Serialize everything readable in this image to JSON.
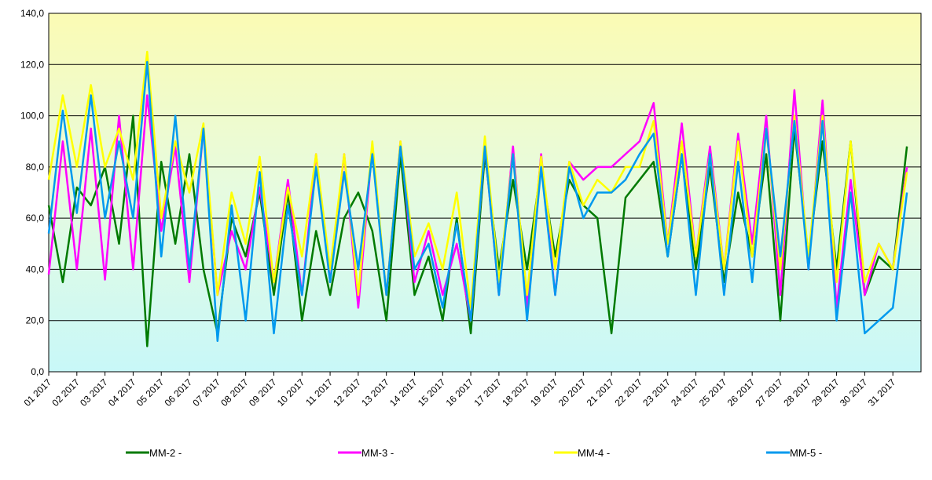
{
  "chart_data": {
    "type": "line",
    "x": [
      1,
      1.5,
      2,
      2.5,
      3,
      3.5,
      4,
      4.5,
      5,
      5.5,
      6,
      6.5,
      7,
      7.5,
      8,
      8.5,
      9,
      9.5,
      10,
      10.5,
      11,
      11.5,
      12,
      12.5,
      13,
      13.5,
      14,
      14.5,
      15,
      15.5,
      16,
      16.5,
      17,
      17.5,
      18,
      18.5,
      19,
      19.5,
      20,
      20.5,
      21,
      21.5,
      22,
      22.5,
      23,
      23.5,
      24,
      24.5,
      25,
      25.5,
      26,
      26.5,
      27,
      27.5,
      28,
      28.5,
      29,
      29.5,
      30,
      30.5,
      31,
      31.5
    ],
    "xlim": [
      1,
      32
    ],
    "xticks": [
      {
        "value": 1,
        "label": "01 2017"
      },
      {
        "value": 2,
        "label": "02 2017"
      },
      {
        "value": 3,
        "label": "03 2017"
      },
      {
        "value": 4,
        "label": "04 2017"
      },
      {
        "value": 5,
        "label": "05 2017"
      },
      {
        "value": 6,
        "label": "06 2017"
      },
      {
        "value": 7,
        "label": "07 2017"
      },
      {
        "value": 8,
        "label": "08 2017"
      },
      {
        "value": 9,
        "label": "09 2017"
      },
      {
        "value": 10,
        "label": "10 2017"
      },
      {
        "value": 11,
        "label": "11 2017"
      },
      {
        "value": 12,
        "label": "12 2017"
      },
      {
        "value": 13,
        "label": "13 2017"
      },
      {
        "value": 14,
        "label": "14 2017"
      },
      {
        "value": 15,
        "label": "15 2017"
      },
      {
        "value": 16,
        "label": "16 2017"
      },
      {
        "value": 17,
        "label": "17 2017"
      },
      {
        "value": 18,
        "label": "18 2017"
      },
      {
        "value": 19,
        "label": "19 2017"
      },
      {
        "value": 20,
        "label": "20 2017"
      },
      {
        "value": 21,
        "label": "21 2017"
      },
      {
        "value": 22,
        "label": "22 2017"
      },
      {
        "value": 23,
        "label": "23 2017"
      },
      {
        "value": 24,
        "label": "24 2017"
      },
      {
        "value": 25,
        "label": "25 2017"
      },
      {
        "value": 26,
        "label": "26 2017"
      },
      {
        "value": 27,
        "label": "27 2017"
      },
      {
        "value": 28,
        "label": "28 2017"
      },
      {
        "value": 29,
        "label": "29 2017"
      },
      {
        "value": 30,
        "label": "30 2017"
      },
      {
        "value": 31,
        "label": "31 2017"
      }
    ],
    "ylim": [
      0,
      140
    ],
    "yticks": [
      {
        "value": 0,
        "label": "0,0"
      },
      {
        "value": 20,
        "label": "20,0"
      },
      {
        "value": 40,
        "label": "40,0"
      },
      {
        "value": 60,
        "label": "60,0"
      },
      {
        "value": 80,
        "label": "80,0"
      },
      {
        "value": 100,
        "label": "100,0"
      },
      {
        "value": 120,
        "label": "120,0"
      },
      {
        "value": 140,
        "label": "140,0"
      }
    ],
    "grid": true,
    "series": [
      {
        "name": "MM-2 -",
        "color": "#007a00",
        "values": [
          65,
          35,
          72,
          65,
          80,
          50,
          100,
          10,
          82,
          50,
          85,
          40,
          15,
          60,
          45,
          70,
          30,
          70,
          20,
          55,
          30,
          60,
          70,
          55,
          20,
          85,
          30,
          45,
          20,
          60,
          15,
          85,
          40,
          75,
          40,
          80,
          45,
          75,
          65,
          60,
          15,
          68,
          75,
          82,
          45,
          85,
          40,
          80,
          35,
          70,
          45,
          85,
          20,
          95,
          45,
          90,
          40,
          90,
          30,
          45,
          40,
          88
        ]
      },
      {
        "name": "MM-3 -",
        "color": "#ff00ff",
        "values": [
          38,
          90,
          40,
          95,
          36,
          100,
          40,
          108,
          55,
          88,
          35,
          95,
          30,
          55,
          40,
          72,
          35,
          75,
          30,
          85,
          35,
          85,
          25,
          88,
          30,
          90,
          35,
          55,
          30,
          50,
          20,
          88,
          30,
          88,
          25,
          85,
          30,
          82,
          75,
          80,
          80,
          85,
          90,
          105,
          50,
          97,
          45,
          88,
          40,
          93,
          50,
          100,
          30,
          110,
          40,
          106,
          25,
          75,
          30,
          50,
          40,
          80
        ]
      },
      {
        "name": "MM-4 -",
        "color": "#ffff00",
        "values": [
          75,
          108,
          80,
          112,
          80,
          95,
          75,
          125,
          60,
          90,
          70,
          97,
          30,
          70,
          50,
          84,
          35,
          72,
          45,
          85,
          40,
          85,
          30,
          90,
          30,
          90,
          45,
          58,
          40,
          70,
          25,
          92,
          35,
          85,
          30,
          84,
          40,
          82,
          65,
          75,
          70,
          80,
          80,
          98,
          50,
          90,
          45,
          85,
          40,
          90,
          45,
          95,
          40,
          100,
          45,
          100,
          35,
          90,
          35,
          50,
          40,
          78
        ]
      },
      {
        "name": "MM-5 -",
        "color": "#0099ee",
        "values": [
          54,
          102,
          62,
          108,
          60,
          90,
          60,
          121,
          45,
          100,
          40,
          95,
          12,
          65,
          20,
          78,
          15,
          65,
          30,
          80,
          35,
          78,
          40,
          85,
          30,
          88,
          40,
          50,
          25,
          58,
          20,
          88,
          30,
          85,
          20,
          80,
          30,
          80,
          60,
          70,
          70,
          75,
          85,
          93,
          45,
          85,
          30,
          85,
          30,
          82,
          35,
          95,
          45,
          98,
          40,
          98,
          20,
          70,
          15,
          20,
          25,
          70
        ]
      }
    ]
  }
}
